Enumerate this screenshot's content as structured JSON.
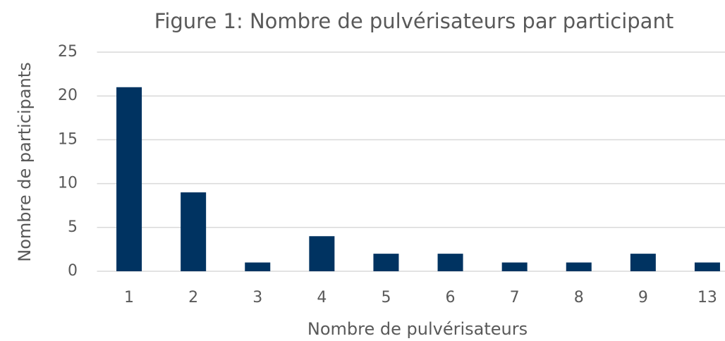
{
  "chart_data": {
    "type": "bar",
    "title": "Figure 1: Nombre de pulvérisateurs par participant",
    "x_label": "Nombre de pulvérisateurs",
    "y_label": "Nombre de participants",
    "categories": [
      "1",
      "2",
      "3",
      "4",
      "5",
      "6",
      "7",
      "8",
      "9",
      "13"
    ],
    "values": [
      21,
      9,
      1,
      4,
      2,
      2,
      1,
      1,
      2,
      1
    ],
    "color": "#003361",
    "ylim": [
      0,
      25
    ],
    "yticks": [
      0,
      5,
      10,
      15,
      20,
      25
    ],
    "grid": true
  }
}
